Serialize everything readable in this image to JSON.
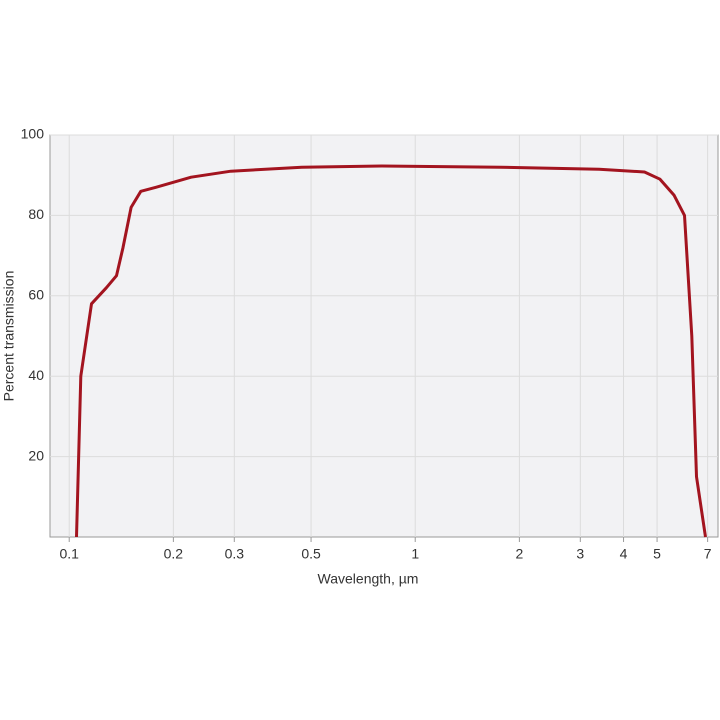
{
  "chart_data": {
    "type": "line",
    "log_x": true,
    "grid": true,
    "x_label": "Wavelength, µm",
    "y_label": "Percent transmission",
    "x": [
      0.105,
      0.108,
      0.116,
      0.128,
      0.137,
      0.143,
      0.151,
      0.161,
      0.178,
      0.225,
      0.293,
      0.47,
      0.8,
      1.77,
      3.4,
      4.6,
      5.1,
      5.6,
      6.0,
      6.3,
      6.5,
      6.9
    ],
    "series": [
      {
        "name": "Transmission",
        "color": "#a3141f",
        "values": [
          0,
          40,
          58,
          62,
          65,
          72,
          82,
          86,
          87,
          89.5,
          91,
          92,
          92.3,
          92,
          91.5,
          90.8,
          89,
          85,
          80,
          50,
          15,
          0
        ]
      }
    ],
    "xlim": [
      0.088,
      7.5
    ],
    "xticks": [
      0.1,
      0.2,
      0.3,
      0.5,
      1,
      2,
      3,
      4,
      5,
      7
    ],
    "ylim": [
      0,
      100
    ],
    "yticks": [
      20,
      40,
      60,
      80,
      100
    ]
  }
}
